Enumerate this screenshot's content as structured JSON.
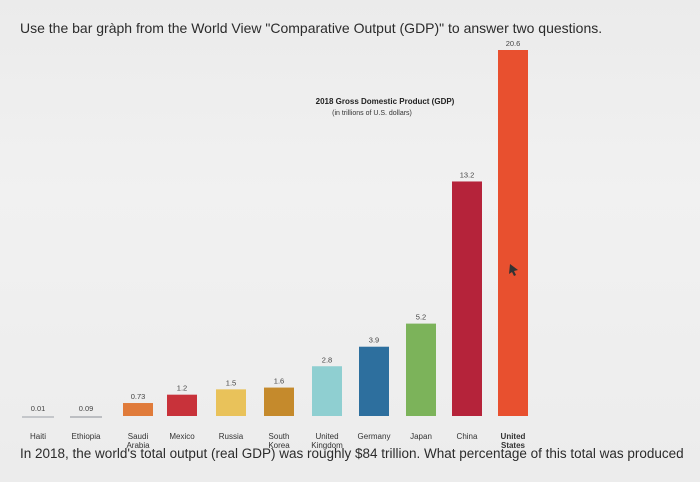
{
  "question": {
    "top": "Use the bar gràph from the World View \"Comparative Output (GDP)\" to answer two questions.",
    "bottom": "In 2018, the world's total output (real GDP) was roughly $84 trillion. What percentage of this total was produced"
  },
  "chart_data": {
    "type": "bar",
    "title": "2018 Gross Domestic Product (GDP)",
    "subtitle": "(in trillions of U.S. dollars)",
    "categories": [
      [
        "Haiti"
      ],
      [
        "Ethiopia"
      ],
      [
        "Saudi",
        "Arabia"
      ],
      [
        "Mexico"
      ],
      [
        "Russia"
      ],
      [
        "South",
        "Korea"
      ],
      [
        "United",
        "Kingdom"
      ],
      [
        "Germany"
      ],
      [
        "Japan"
      ],
      [
        "China"
      ],
      [
        "United",
        "States"
      ]
    ],
    "values": [
      0.01,
      0.09,
      0.73,
      1.2,
      1.5,
      1.6,
      2.8,
      3.9,
      5.2,
      13.2,
      20.6
    ],
    "value_labels": [
      "0.01",
      "0.09",
      "0.73",
      "1.2",
      "1.5",
      "1.6",
      "2.8",
      "3.9",
      "5.2",
      "13.2",
      "20.6"
    ],
    "colors": [
      "#9aa0a6",
      "#8a8f96",
      "#e07b3a",
      "#c8323a",
      "#e9c25a",
      "#c58a2c",
      "#8fcfd1",
      "#2d6f9e",
      "#7cb35a",
      "#b5233a",
      "#e8502f"
    ],
    "bold_category": "United States",
    "ylim": [
      0,
      20.6
    ]
  }
}
